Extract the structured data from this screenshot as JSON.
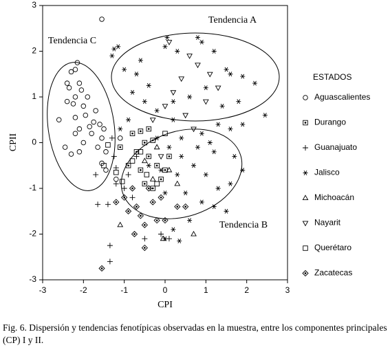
{
  "chart_data": {
    "type": "scatter",
    "xlabel": "CPI",
    "ylabel": "CPII",
    "xlim": [
      -3,
      3
    ],
    "ylim": [
      -3,
      3
    ],
    "xticks": [
      -3,
      -2,
      -1,
      0,
      1,
      2,
      3
    ],
    "yticks": [
      -3,
      -2,
      -1,
      0,
      1,
      2,
      3
    ],
    "legend_title": "ESTADOS",
    "legend": "right",
    "annotations": [
      "Tendencia A",
      "Tendencia B",
      "Tendencia C"
    ],
    "caption": "Fig. 6. Dispersión y tendencias fenotípicas observadas en la muestra, entre los componentes principales (CP) I y II.",
    "series": [
      {
        "name": "Aguascalientes",
        "color": "#000000",
        "marker": "circle",
        "x": [
          -1.55,
          -2.6,
          -2.45,
          -2.3,
          -2.2,
          -2.15,
          -2.3,
          -2.4,
          -2.35,
          -2.2,
          -2.1,
          -2.05,
          -2.0,
          -2.2,
          -2.1,
          -1.95,
          -1.85,
          -1.75,
          -1.8,
          -2.1,
          -2.2,
          -1.6,
          -1.5,
          -1.55,
          -1.45,
          -1.55,
          -1.45,
          -1.2,
          -1.1,
          -1.7,
          -2.4,
          -2.25,
          -1.9,
          -2.0,
          -1.65
        ],
        "y": [
          2.7,
          0.5,
          -0.1,
          -0.25,
          1.6,
          1.75,
          1.55,
          0.9,
          1.2,
          1.0,
          1.3,
          1.15,
          0.8,
          0.55,
          0.3,
          0.6,
          0.35,
          0.45,
          0.2,
          -0.2,
          0.2,
          0.4,
          0.3,
          0.1,
          -0.2,
          -0.45,
          -0.6,
          -0.8,
          0.1,
          0.7,
          1.3,
          0.85,
          1.0,
          0.0,
          -0.1
        ]
      },
      {
        "name": "Durango",
        "color": "#000000",
        "marker": "square-dot",
        "x": [
          -0.6,
          -0.5,
          -0.7,
          -0.4,
          -0.3,
          -0.9,
          -0.6,
          -0.2,
          -0.1,
          0.0,
          -0.5,
          -1.1,
          -0.8,
          -0.3,
          0.1,
          -0.4
        ],
        "y": [
          0.25,
          0.0,
          -0.2,
          -0.3,
          0.05,
          -0.5,
          -0.6,
          -0.5,
          -0.8,
          -0.6,
          -0.9,
          -0.1,
          0.2,
          -1.0,
          -0.3,
          0.3
        ]
      },
      {
        "name": "Guanajuato",
        "color": "#000000",
        "marker": "plus",
        "x": [
          -1.7,
          -1.65,
          -1.4,
          -1.35,
          -1.35,
          -1.2,
          -1.2,
          -1.25,
          -1.3,
          -1.0,
          -0.9,
          -0.5,
          0.1,
          -0.1,
          -0.7,
          -0.8
        ],
        "y": [
          -0.7,
          -1.35,
          -1.35,
          -2.25,
          -2.6,
          -0.9,
          -0.55,
          -0.3,
          0.1,
          -1.0,
          -0.7,
          -2.1,
          -2.1,
          -2.0,
          -0.3,
          -1.2
        ]
      },
      {
        "name": "Jalisco",
        "color": "#000000",
        "marker": "asterisk",
        "x": [
          -1.25,
          -1.15,
          -1.3,
          -1.0,
          -0.6,
          -0.7,
          -0.4,
          0.0,
          0.05,
          0.3,
          0.8,
          0.9,
          1.2,
          1.5,
          1.6,
          1.9,
          2.2,
          2.45,
          1.8,
          1.4,
          1.0,
          0.6,
          0.2,
          -0.2,
          -0.5,
          -0.9,
          -1.1,
          -0.8,
          1.6,
          1.9,
          1.3,
          0.9,
          0.4,
          1.2,
          1.7,
          1.9,
          1.6,
          1.3,
          1.0,
          0.7,
          0.4,
          0.1,
          -0.2,
          0.5,
          0.9,
          1.2,
          0.6,
          0.2,
          0.0,
          -0.1,
          0.3,
          0.8,
          1.1,
          0.2,
          -0.4,
          1.5,
          0.0,
          0.35
        ],
        "y": [
          2.05,
          2.1,
          1.9,
          1.6,
          1.8,
          1.5,
          1.25,
          2.1,
          2.3,
          2.0,
          2.3,
          2.2,
          2.0,
          1.6,
          1.5,
          1.45,
          1.3,
          0.6,
          0.9,
          0.8,
          1.2,
          1.0,
          0.9,
          0.7,
          0.9,
          0.5,
          0.3,
          1.1,
          0.3,
          0.4,
          0.4,
          0.2,
          0.1,
          -0.2,
          -0.3,
          -0.6,
          -0.9,
          -1.0,
          -0.7,
          -0.5,
          -0.3,
          -0.1,
          0.1,
          -1.1,
          -1.3,
          -1.4,
          -1.7,
          -1.9,
          -1.1,
          -0.6,
          -0.7,
          -0.1,
          0.0,
          0.5,
          -0.5,
          -1.5,
          -2.1,
          -2.15
        ]
      },
      {
        "name": "Michoacán",
        "color": "#000000",
        "marker": "triangle",
        "x": [
          -1.1,
          -0.5,
          -0.2,
          0.1,
          0.3,
          -0.05,
          0.7,
          -0.3
        ],
        "y": [
          -1.8,
          -0.4,
          -0.1,
          -0.6,
          -0.9,
          -2.1,
          -2.0,
          -0.8
        ]
      },
      {
        "name": "Nayarit",
        "color": "#000000",
        "marker": "triangle-down",
        "x": [
          0.1,
          0.6,
          0.8,
          0.4,
          1.1,
          0.2,
          0.0,
          1.0,
          0.5,
          -0.3,
          1.3,
          0.7,
          -0.1
        ],
        "y": [
          2.2,
          1.9,
          1.7,
          1.4,
          1.5,
          1.1,
          0.8,
          0.9,
          0.6,
          0.5,
          1.2,
          0.3,
          -0.3
        ]
      },
      {
        "name": "Querétaro",
        "color": "#000000",
        "marker": "square",
        "x": [
          -1.5,
          -1.2,
          -1.05,
          -0.8,
          -0.6,
          -0.45,
          -1.4,
          -0.2,
          0.0
        ],
        "y": [
          -0.5,
          -0.65,
          -0.85,
          -0.4,
          -0.2,
          -0.7,
          -0.05,
          -0.9,
          0.2
        ]
      },
      {
        "name": "Zacatecas",
        "color": "#000000",
        "marker": "diamond-dot",
        "x": [
          -1.0,
          -0.9,
          -0.7,
          -0.6,
          -0.5,
          -0.2,
          0.0,
          -0.3,
          -0.8,
          -0.1,
          0.3,
          0.5,
          -0.75,
          -0.5,
          -1.2,
          -1.55,
          -0.4
        ],
        "y": [
          -1.2,
          -1.5,
          -1.4,
          -1.6,
          -1.8,
          -1.7,
          -1.7,
          -1.3,
          -1.0,
          -1.2,
          -1.4,
          -1.4,
          -2.0,
          -2.3,
          -1.3,
          -2.75,
          -1.0
        ]
      }
    ]
  }
}
